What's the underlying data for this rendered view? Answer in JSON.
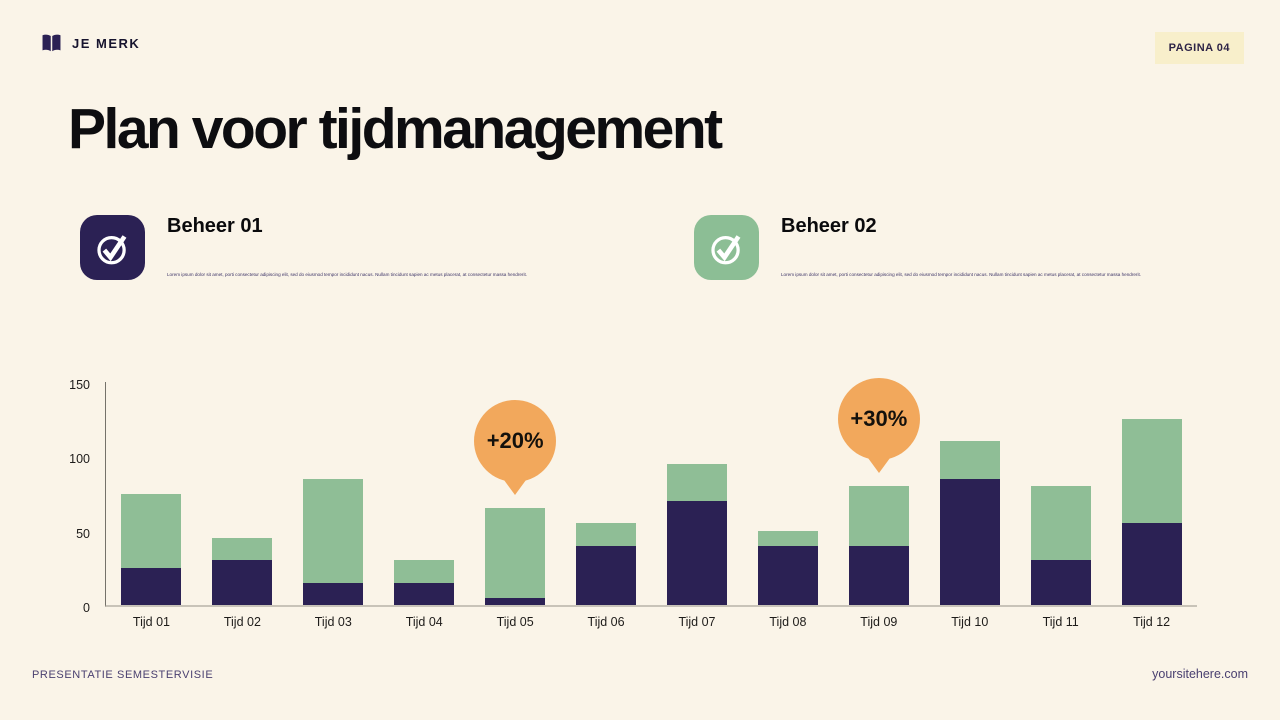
{
  "colors": {
    "background": "#faf4e8",
    "navy": "#2b2154",
    "green": "#8fbe96",
    "orange": "#f2a85c",
    "badge_background": "#f8efcb",
    "footer_text": "#4a4070"
  },
  "header": {
    "brand": "JE MERK",
    "page_badge": "PAGINA 04"
  },
  "title": "Plan voor tijdmanagement",
  "features": [
    {
      "heading": "Beheer 01",
      "icon": "check-circle-icon",
      "icon_color": "#2b2154",
      "body": "Lorem ipsum dolor sit amet, porti consectetur adipiscing elit, sed do eiusmod tempor incididunt nacus. Nullam tincidunt sapien ac metus placerat, at consectetur massa hendrerit."
    },
    {
      "heading": "Beheer 02",
      "icon": "check-circle-icon",
      "icon_color": "#8cbe95",
      "body": "Lorem ipsum dolor sit amet, porti consectetur adipiscing elit, sed do eiusmod tempor incididunt nacus. Nullam tincidunt sapien ac metus placerat, at consectetur massa hendrerit."
    }
  ],
  "chart_data": {
    "type": "bar",
    "stacked": true,
    "title": "",
    "xlabel": "",
    "ylabel": "",
    "categories": [
      "Tijd 01",
      "Tijd 02",
      "Tijd 03",
      "Tijd 04",
      "Tijd 05",
      "Tijd 06",
      "Tijd 07",
      "Tijd 08",
      "Tijd 09",
      "Tijd 10",
      "Tijd 11",
      "Tijd 12"
    ],
    "series": [
      {
        "name": "bottom-navy",
        "color": "#2b2154",
        "values": [
          25,
          30,
          15,
          15,
          5,
          40,
          70,
          40,
          40,
          85,
          30,
          55
        ]
      },
      {
        "name": "top-green",
        "color": "#8fbe96",
        "values": [
          50,
          15,
          70,
          15,
          60,
          15,
          25,
          10,
          40,
          25,
          50,
          70
        ]
      }
    ],
    "totals": [
      75,
      45,
      85,
      30,
      65,
      55,
      95,
      50,
      80,
      110,
      80,
      125
    ],
    "ylim": [
      0,
      150
    ],
    "yticks": [
      0,
      50,
      100,
      150
    ],
    "grid": false,
    "legend": false,
    "annotations": [
      {
        "label": "+20%",
        "category": "Tijd 05",
        "category_index": 4,
        "color": "#f2a85c"
      },
      {
        "label": "+30%",
        "category": "Tijd 09",
        "category_index": 8,
        "color": "#f2a85c"
      }
    ]
  },
  "footer": {
    "left": "PRESENTATIE SEMESTERVISIE",
    "right": "yoursitehere.com"
  }
}
